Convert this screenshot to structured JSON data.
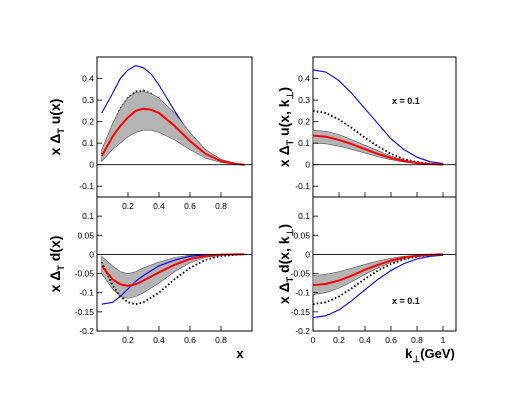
{
  "colors": {
    "band": "#b4b4b4",
    "central": "#ff0000",
    "blue": "#0000ee",
    "dotted": "#000000",
    "zero": "#000000"
  },
  "chart_data": [
    {
      "id": "tl",
      "type": "area",
      "xlim": [
        0,
        1
      ],
      "ylim": [
        -0.15,
        0.5
      ],
      "x_ticks": [
        {
          "v": 0.2,
          "label": "0.2"
        },
        {
          "v": 0.4,
          "label": "0.4"
        },
        {
          "v": 0.6,
          "label": "0.6"
        },
        {
          "v": 0.8,
          "label": "0.8"
        }
      ],
      "y_ticks": [
        {
          "v": -0.1,
          "label": "-0.1"
        },
        {
          "v": 0,
          "label": "0"
        },
        {
          "v": 0.1,
          "label": "0.1"
        },
        {
          "v": 0.2,
          "label": "0.2"
        },
        {
          "v": 0.3,
          "label": "0.3"
        },
        {
          "v": 0.4,
          "label": "0.4"
        }
      ],
      "xlabel": "",
      "ylabel": "x ΔT u(x)",
      "ylabel_parts": {
        "pre": "x Δ",
        "sub": "T",
        "post": " u(x)"
      },
      "annotation": "",
      "series": [
        {
          "style": "blue",
          "x": [
            0.03,
            0.1,
            0.15,
            0.2,
            0.25,
            0.3,
            0.35,
            0.4,
            0.5,
            0.6,
            0.7,
            0.8,
            0.9,
            0.95
          ],
          "y": [
            0.24,
            0.33,
            0.4,
            0.44,
            0.46,
            0.45,
            0.42,
            0.37,
            0.25,
            0.14,
            0.06,
            0.02,
            0.003,
            0.0
          ]
        },
        {
          "style": "dotted",
          "x": [
            0.03,
            0.1,
            0.15,
            0.2,
            0.25,
            0.3,
            0.35,
            0.4,
            0.5,
            0.6,
            0.7,
            0.8,
            0.9,
            0.95
          ],
          "y": [
            0.05,
            0.18,
            0.26,
            0.31,
            0.34,
            0.345,
            0.33,
            0.3,
            0.22,
            0.13,
            0.06,
            0.02,
            0.003,
            0.0
          ]
        },
        {
          "style": "band",
          "x": [
            0.03,
            0.1,
            0.15,
            0.2,
            0.25,
            0.3,
            0.35,
            0.4,
            0.5,
            0.6,
            0.7,
            0.8,
            0.9,
            0.95
          ],
          "y_upper": [
            0.07,
            0.19,
            0.26,
            0.31,
            0.335,
            0.34,
            0.33,
            0.31,
            0.24,
            0.15,
            0.07,
            0.025,
            0.004,
            0.0
          ],
          "y_lower": [
            0.015,
            0.07,
            0.1,
            0.13,
            0.15,
            0.16,
            0.16,
            0.15,
            0.115,
            0.07,
            0.03,
            0.01,
            0.001,
            0.0
          ]
        },
        {
          "style": "central",
          "x": [
            0.03,
            0.1,
            0.15,
            0.2,
            0.25,
            0.3,
            0.35,
            0.4,
            0.5,
            0.6,
            0.7,
            0.8,
            0.9,
            0.95
          ],
          "y": [
            0.04,
            0.13,
            0.18,
            0.22,
            0.25,
            0.26,
            0.255,
            0.24,
            0.18,
            0.11,
            0.05,
            0.017,
            0.003,
            0.0
          ]
        }
      ]
    },
    {
      "id": "tr",
      "type": "area",
      "xlim": [
        0,
        1.1
      ],
      "ylim": [
        -0.15,
        0.5
      ],
      "x_ticks": [],
      "y_ticks": [
        {
          "v": -0.1,
          "label": "-0.1"
        },
        {
          "v": 0,
          "label": "0"
        },
        {
          "v": 0.1,
          "label": "0.1"
        },
        {
          "v": 0.2,
          "label": "0.2"
        },
        {
          "v": 0.3,
          "label": "0.3"
        },
        {
          "v": 0.4,
          "label": "0.4"
        }
      ],
      "xlabel": "",
      "ylabel": "x ΔT u(x, k⊥)",
      "ylabel_parts": {
        "pre": "x Δ",
        "sub": "T",
        "post": " u(x, k",
        "post_sub": "⊥",
        "end": ")"
      },
      "annotation": "x = 0.1",
      "series": [
        {
          "style": "blue",
          "x": [
            0,
            0.1,
            0.2,
            0.3,
            0.4,
            0.5,
            0.6,
            0.7,
            0.8,
            0.9,
            1.0
          ],
          "y": [
            0.44,
            0.43,
            0.39,
            0.33,
            0.26,
            0.19,
            0.12,
            0.07,
            0.035,
            0.014,
            0.005
          ]
        },
        {
          "style": "dotted",
          "x": [
            0,
            0.1,
            0.2,
            0.3,
            0.4,
            0.5,
            0.6,
            0.7,
            0.8,
            0.9,
            1.0
          ],
          "y": [
            0.25,
            0.24,
            0.21,
            0.17,
            0.125,
            0.085,
            0.05,
            0.026,
            0.012,
            0.004,
            0.001
          ]
        },
        {
          "style": "band",
          "x": [
            0,
            0.1,
            0.2,
            0.3,
            0.4,
            0.5,
            0.6,
            0.7,
            0.8,
            0.9,
            1.0
          ],
          "y_upper": [
            0.16,
            0.155,
            0.14,
            0.115,
            0.09,
            0.065,
            0.04,
            0.022,
            0.01,
            0.004,
            0.001
          ],
          "y_lower": [
            0.1,
            0.097,
            0.086,
            0.071,
            0.054,
            0.037,
            0.023,
            0.012,
            0.005,
            0.002,
            0.0
          ]
        },
        {
          "style": "central",
          "x": [
            0,
            0.1,
            0.2,
            0.3,
            0.4,
            0.5,
            0.6,
            0.7,
            0.8,
            0.9,
            1.0
          ],
          "y": [
            0.135,
            0.13,
            0.115,
            0.095,
            0.072,
            0.05,
            0.031,
            0.017,
            0.008,
            0.003,
            0.001
          ]
        }
      ]
    },
    {
      "id": "bl",
      "type": "area",
      "xlim": [
        0,
        1
      ],
      "ylim": [
        -0.2,
        0.15
      ],
      "x_ticks": [
        {
          "v": 0.2,
          "label": "0.2"
        },
        {
          "v": 0.4,
          "label": "0.4"
        },
        {
          "v": 0.6,
          "label": "0.6"
        },
        {
          "v": 0.8,
          "label": "0.8"
        }
      ],
      "y_ticks": [
        {
          "v": -0.2,
          "label": "-0.2"
        },
        {
          "v": -0.15,
          "label": "-0.15"
        },
        {
          "v": -0.1,
          "label": "-0.1"
        },
        {
          "v": -0.05,
          "label": "-0.05"
        },
        {
          "v": 0,
          "label": "0"
        },
        {
          "v": 0.05,
          "label": "0.05"
        },
        {
          "v": 0.1,
          "label": "0.1"
        }
      ],
      "xlabel": "x",
      "ylabel": "x ΔT d(x)",
      "ylabel_parts": {
        "pre": "x Δ",
        "sub": "T",
        "post": " d(x)"
      },
      "annotation": "",
      "series": [
        {
          "style": "band",
          "x": [
            0.03,
            0.1,
            0.15,
            0.2,
            0.25,
            0.3,
            0.4,
            0.5,
            0.6,
            0.7,
            0.8,
            0.9,
            0.95
          ],
          "y_upper": [
            -0.005,
            -0.03,
            -0.045,
            -0.05,
            -0.045,
            -0.035,
            -0.02,
            -0.008,
            -0.002,
            0.0,
            0.0,
            0.0,
            0.0
          ],
          "y_lower": [
            -0.05,
            -0.09,
            -0.11,
            -0.115,
            -0.11,
            -0.1,
            -0.075,
            -0.045,
            -0.022,
            -0.008,
            -0.002,
            0.0,
            0.0
          ]
        },
        {
          "style": "blue",
          "x": [
            0.03,
            0.1,
            0.15,
            0.2,
            0.25,
            0.3,
            0.4,
            0.5,
            0.6,
            0.7,
            0.8,
            0.9,
            0.95
          ],
          "y": [
            -0.13,
            -0.125,
            -0.11,
            -0.09,
            -0.07,
            -0.055,
            -0.03,
            -0.015,
            -0.005,
            -0.001,
            0.0,
            0.0,
            0.0
          ]
        },
        {
          "style": "dotted",
          "x": [
            0.03,
            0.1,
            0.15,
            0.2,
            0.25,
            0.3,
            0.4,
            0.5,
            0.6,
            0.7,
            0.8,
            0.9,
            0.95
          ],
          "y": [
            -0.02,
            -0.08,
            -0.11,
            -0.125,
            -0.13,
            -0.125,
            -0.1,
            -0.065,
            -0.035,
            -0.014,
            -0.004,
            -0.001,
            0.0
          ]
        },
        {
          "style": "central",
          "x": [
            0.03,
            0.1,
            0.15,
            0.2,
            0.25,
            0.3,
            0.4,
            0.5,
            0.6,
            0.7,
            0.8,
            0.9,
            0.95
          ],
          "y": [
            -0.03,
            -0.065,
            -0.078,
            -0.082,
            -0.078,
            -0.068,
            -0.047,
            -0.027,
            -0.012,
            -0.004,
            -0.001,
            0.0,
            0.0
          ]
        }
      ]
    },
    {
      "id": "br",
      "type": "area",
      "xlim": [
        0,
        1.1
      ],
      "ylim": [
        -0.2,
        0.15
      ],
      "x_ticks": [
        {
          "v": 0,
          "label": "0"
        },
        {
          "v": 0.2,
          "label": "0.2"
        },
        {
          "v": 0.4,
          "label": "0.4"
        },
        {
          "v": 0.6,
          "label": "0.6"
        },
        {
          "v": 0.8,
          "label": "0.8"
        },
        {
          "v": 1,
          "label": "1"
        }
      ],
      "y_ticks": [
        {
          "v": -0.2,
          "label": "-0.2"
        },
        {
          "v": -0.15,
          "label": "-0.15"
        },
        {
          "v": -0.1,
          "label": "-0.1"
        },
        {
          "v": -0.05,
          "label": "-0.05"
        },
        {
          "v": 0,
          "label": "0"
        },
        {
          "v": 0.05,
          "label": "0.05"
        },
        {
          "v": 0.1,
          "label": "0.1"
        }
      ],
      "xlabel": "k⊥(GeV)",
      "xlabel_parts": {
        "pre": "k",
        "sub": "⊥",
        "post": "(GeV)"
      },
      "ylabel": "x ΔT d(x, k⊥)",
      "ylabel_parts": {
        "pre": "x Δ",
        "sub": "T",
        "post": " d(x, k",
        "post_sub": "⊥",
        "end": ")"
      },
      "annotation": "x = 0.1",
      "series": [
        {
          "style": "band",
          "x": [
            0,
            0.1,
            0.2,
            0.3,
            0.4,
            0.5,
            0.6,
            0.7,
            0.8,
            0.9,
            1.0
          ],
          "y_upper": [
            -0.055,
            -0.052,
            -0.045,
            -0.036,
            -0.026,
            -0.017,
            -0.01,
            -0.005,
            -0.002,
            -0.001,
            0.0
          ],
          "y_lower": [
            -0.105,
            -0.1,
            -0.088,
            -0.071,
            -0.052,
            -0.035,
            -0.021,
            -0.011,
            -0.005,
            -0.002,
            -0.001
          ]
        },
        {
          "style": "blue",
          "x": [
            0,
            0.1,
            0.2,
            0.3,
            0.4,
            0.5,
            0.6,
            0.7,
            0.8,
            0.9,
            1.0
          ],
          "y": [
            -0.165,
            -0.16,
            -0.145,
            -0.12,
            -0.092,
            -0.065,
            -0.042,
            -0.024,
            -0.012,
            -0.005,
            -0.002
          ]
        },
        {
          "style": "dotted",
          "x": [
            0,
            0.1,
            0.2,
            0.3,
            0.4,
            0.5,
            0.6,
            0.7,
            0.8,
            0.9,
            1.0
          ],
          "y": [
            -0.13,
            -0.125,
            -0.11,
            -0.088,
            -0.064,
            -0.042,
            -0.025,
            -0.013,
            -0.006,
            -0.002,
            -0.001
          ]
        },
        {
          "style": "central",
          "x": [
            0,
            0.1,
            0.2,
            0.3,
            0.4,
            0.5,
            0.6,
            0.7,
            0.8,
            0.9,
            1.0
          ],
          "y": [
            -0.08,
            -0.077,
            -0.068,
            -0.055,
            -0.04,
            -0.027,
            -0.016,
            -0.008,
            -0.004,
            -0.001,
            0.0
          ]
        }
      ]
    }
  ]
}
